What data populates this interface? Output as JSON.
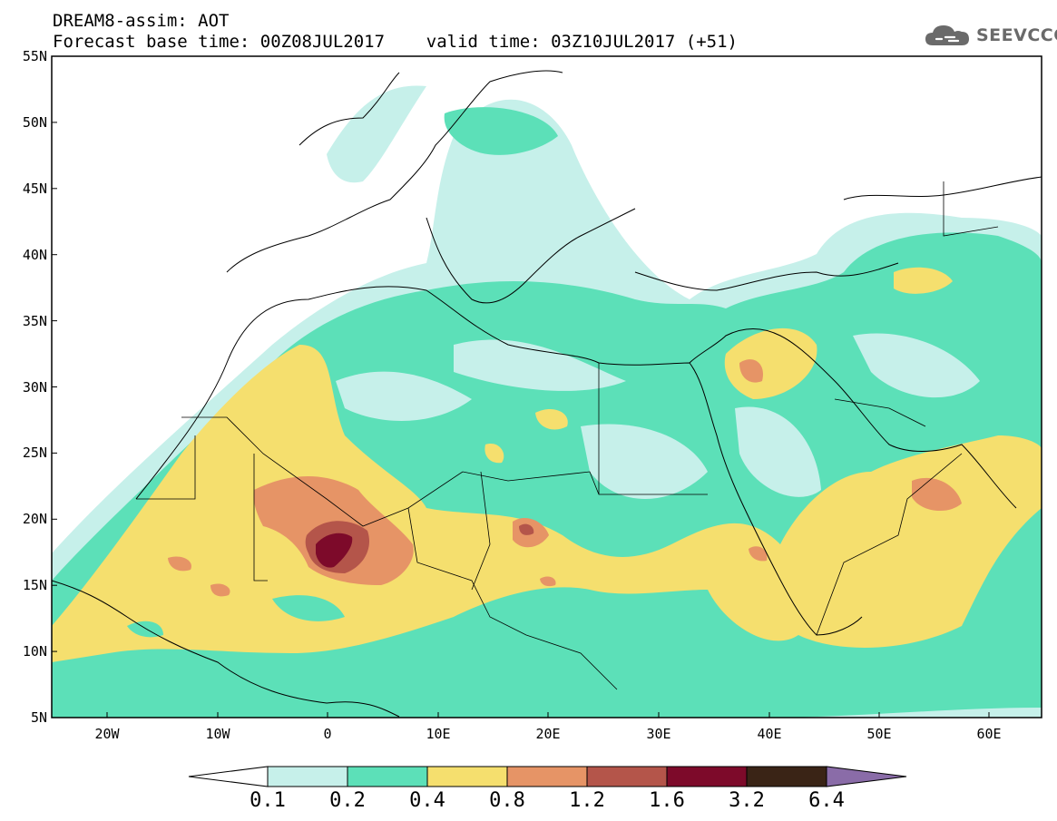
{
  "title_line1": "DREAM8-assim: AOT",
  "title_line2": "Forecast base time: 00Z08JUL2017    valid time: 03Z10JUL2017 (+51)",
  "logo_text": "SEEVCCC",
  "lat_labels": [
    "55N",
    "50N",
    "45N",
    "40N",
    "35N",
    "30N",
    "25N",
    "20N",
    "15N",
    "10N",
    "5N"
  ],
  "lon_labels": [
    "20W",
    "10W",
    "0",
    "10E",
    "20E",
    "30E",
    "40E",
    "50E",
    "60E"
  ],
  "colorbar": {
    "labels": [
      "0.1",
      "0.2",
      "0.4",
      "0.8",
      "1.2",
      "1.6",
      "3.2",
      "6.4"
    ],
    "colors": [
      "#c6f0ea",
      "#5ce0b8",
      "#f5df6e",
      "#e69466",
      "#b4554a",
      "#7d0a2a",
      "#3a2416",
      "#8a6ca8"
    ]
  }
}
